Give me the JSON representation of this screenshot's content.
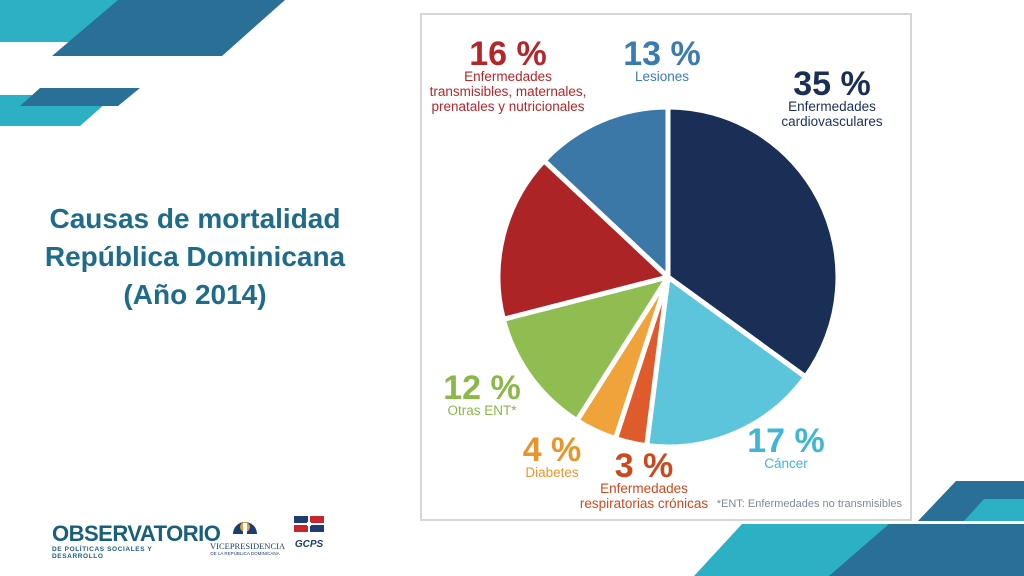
{
  "title": {
    "line1": "Causas de mortalidad",
    "line2": "República Dominicana",
    "line3": "(Año 2014)"
  },
  "chart_data": {
    "type": "pie",
    "slices": [
      {
        "pct_label": "35 %",
        "value": 35,
        "label_lines": [
          "Enfermedades",
          "cardiovasculares"
        ],
        "color": "#1a2f55",
        "label_color": "#1a2f55"
      },
      {
        "pct_label": "17 %",
        "value": 17,
        "label_lines": [
          "Cáncer"
        ],
        "color": "#5cc4db",
        "label_color": "#3fb6d3"
      },
      {
        "pct_label": "3 %",
        "value": 3,
        "label_lines": [
          "Enfermedades",
          "respiratorias crónicas"
        ],
        "color": "#de5b2b",
        "label_color": "#c84a1f"
      },
      {
        "pct_label": "4 %",
        "value": 4,
        "label_lines": [
          "Diabetes"
        ],
        "color": "#f0a33a",
        "label_color": "#e8962c"
      },
      {
        "pct_label": "12 %",
        "value": 12,
        "label_lines": [
          "Otras ENT*"
        ],
        "color": "#90bd52",
        "label_color": "#8bb84a"
      },
      {
        "pct_label": "16 %",
        "value": 16,
        "label_lines": [
          "Enfermedades",
          "transmisibles, maternales,",
          "prenatales y nutricionales"
        ],
        "color": "#ad2426",
        "label_color": "#b3262a"
      },
      {
        "pct_label": "13 %",
        "value": 13,
        "label_lines": [
          "Lesiones"
        ],
        "color": "#3b78a8",
        "label_color": "#3b7cb0"
      }
    ],
    "footnote": "*ENT: Enfermedades no transmisibles"
  },
  "logos": {
    "observatorio": "OBSERVATORIO",
    "observatorio_sub": "DE POLÍTICAS SOCIALES Y DESARROLLO",
    "vicepresidencia": "VICEPRESIDENCIA",
    "vicepresidencia_sub": "DE LA REPÚBLICA DOMINICANA",
    "gcps": "GCPS"
  },
  "colors": {
    "title": "#1f6b8a",
    "deco_teal": "#2bb0c4",
    "deco_blue": "#2a6f95"
  }
}
